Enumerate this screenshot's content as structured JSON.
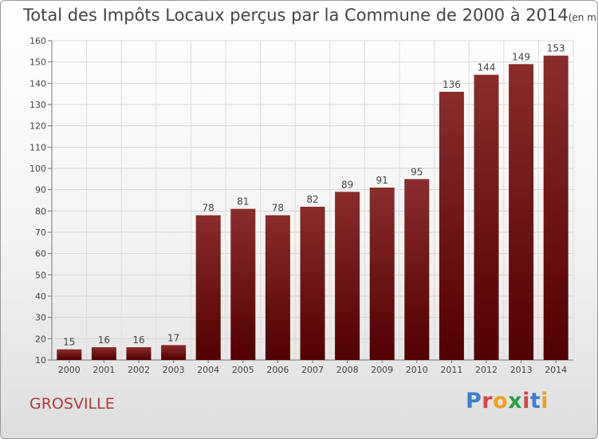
{
  "header": {
    "title": "Total des Impôts Locaux perçus par la Commune de 2000 à 2014",
    "unit": "(en milliers d'€)"
  },
  "footer": {
    "commune": "GROSVILLE",
    "logo_text": "Proxiti",
    "logo_colors": [
      "#3a7fd0",
      "#e04040",
      "#f0a020",
      "#2aa040",
      "#e04040",
      "#3a7fd0",
      "#f0a020"
    ]
  },
  "chart_data": {
    "type": "bar",
    "categories": [
      "2000",
      "2001",
      "2002",
      "2003",
      "2004",
      "2005",
      "2006",
      "2007",
      "2008",
      "2009",
      "2010",
      "2011",
      "2012",
      "2013",
      "2014"
    ],
    "values": [
      15,
      16,
      16,
      17,
      78,
      81,
      78,
      82,
      89,
      91,
      95,
      136,
      144,
      149,
      153
    ],
    "ylim": [
      10,
      160
    ],
    "yticks": [
      10,
      20,
      30,
      40,
      50,
      60,
      70,
      80,
      90,
      100,
      110,
      120,
      130,
      140,
      150,
      160
    ],
    "grid": true,
    "bar_color": "#7a1a1a",
    "xlabel": "",
    "ylabel": ""
  }
}
